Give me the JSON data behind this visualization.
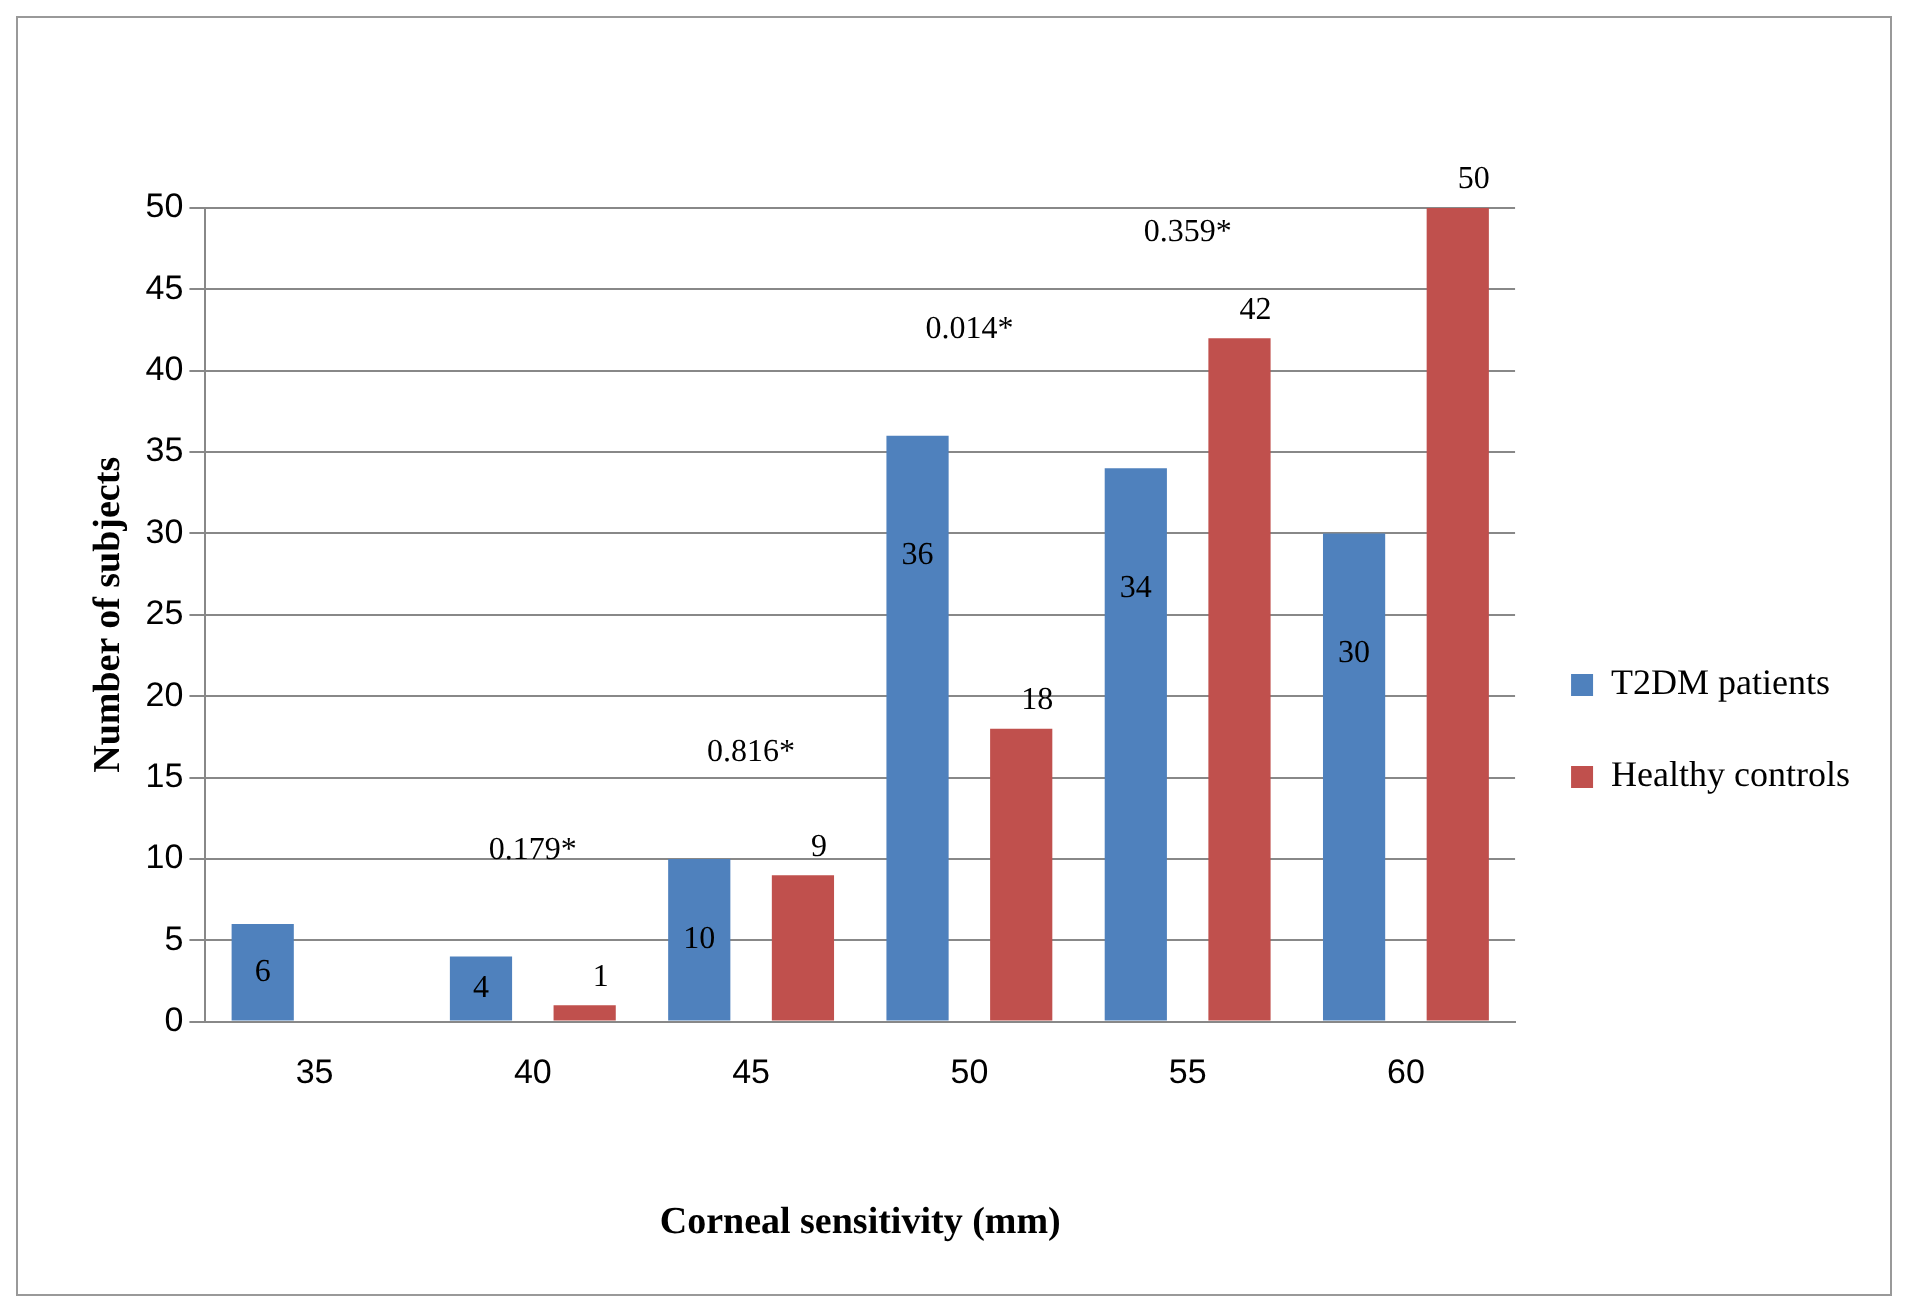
{
  "chart_data": {
    "type": "bar",
    "xlabel": "Corneal sensitivity (mm)",
    "ylabel": "Number of subjects",
    "categories": [
      "35",
      "40",
      "45",
      "50",
      "55",
      "60"
    ],
    "series": [
      {
        "name": "T2DM patients",
        "color": "#4f81bd",
        "values": [
          6,
          4,
          10,
          36,
          34,
          30
        ]
      },
      {
        "name": "Healthy controls",
        "color": "#c0504d",
        "values": [
          null,
          1,
          9,
          18,
          42,
          50
        ]
      }
    ],
    "ylim": [
      0,
      50
    ],
    "yticks": [
      0,
      5,
      10,
      15,
      20,
      25,
      30,
      35,
      40,
      45,
      50
    ],
    "grid": "y",
    "legend": "right",
    "data_labels": true,
    "annotations": [
      "0.179*",
      "0.816*",
      "0.014*",
      "0.359*"
    ]
  }
}
